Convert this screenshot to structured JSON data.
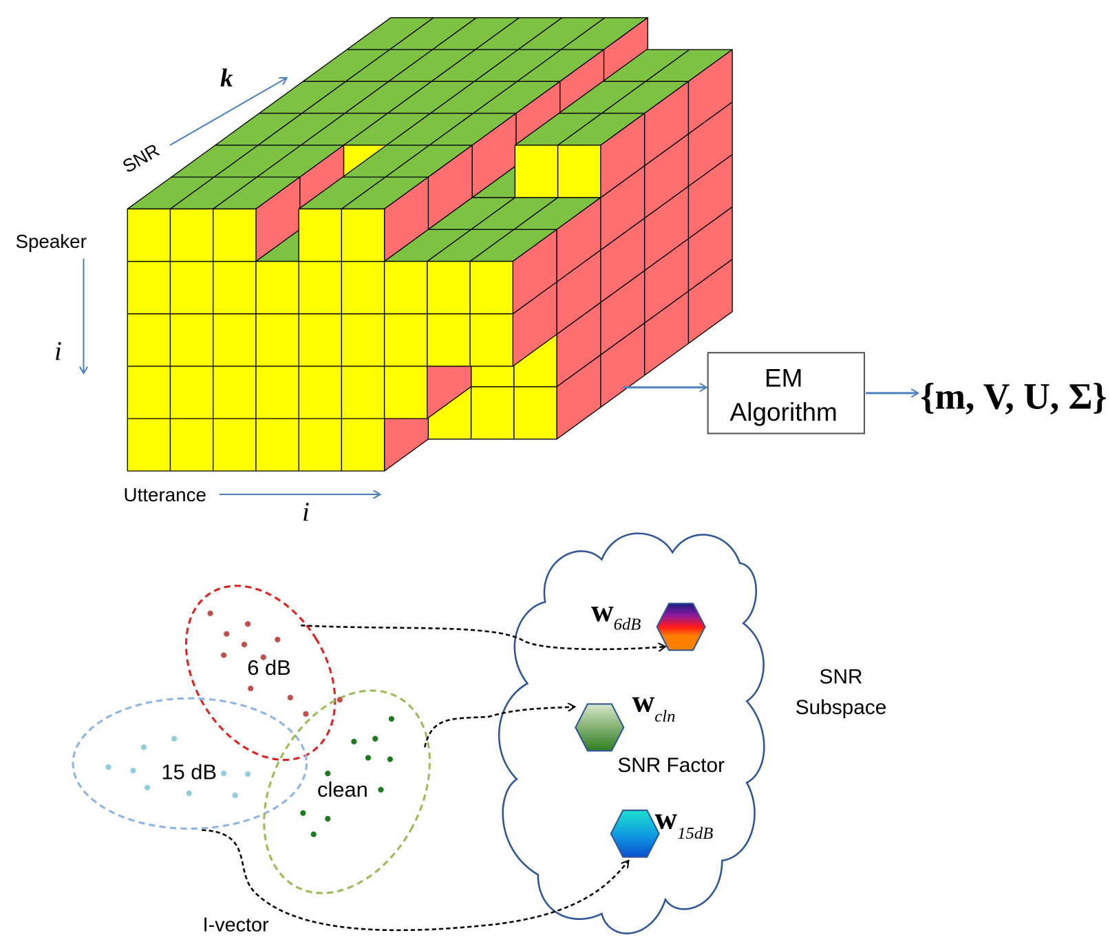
{
  "top": {
    "depth_axis_symbol": "k",
    "depth_axis_label": "SNR",
    "row_axis_label": "Speaker",
    "row_axis_symbol": "i",
    "column_axis_label": "Utterance",
    "column_axis_symbol": "i",
    "em_box": {
      "lines": [
        "EM",
        "Algorithm"
      ]
    },
    "output": "{m, V, U, Σ}"
  },
  "bottom": {
    "clusters": [
      {
        "label": "6 dB"
      },
      {
        "label": "15 dB"
      },
      {
        "label": "clean"
      }
    ],
    "ivector_label": "I-vector",
    "factors": [
      {
        "symbol": "w",
        "subscript": "6dB"
      },
      {
        "symbol": "w",
        "subscript": "cln"
      },
      {
        "symbol": "w",
        "subscript": "15dB"
      }
    ],
    "snr_factor_label": "SNR Factor",
    "subspace_label": [
      "SNR",
      "Subspace"
    ]
  }
}
